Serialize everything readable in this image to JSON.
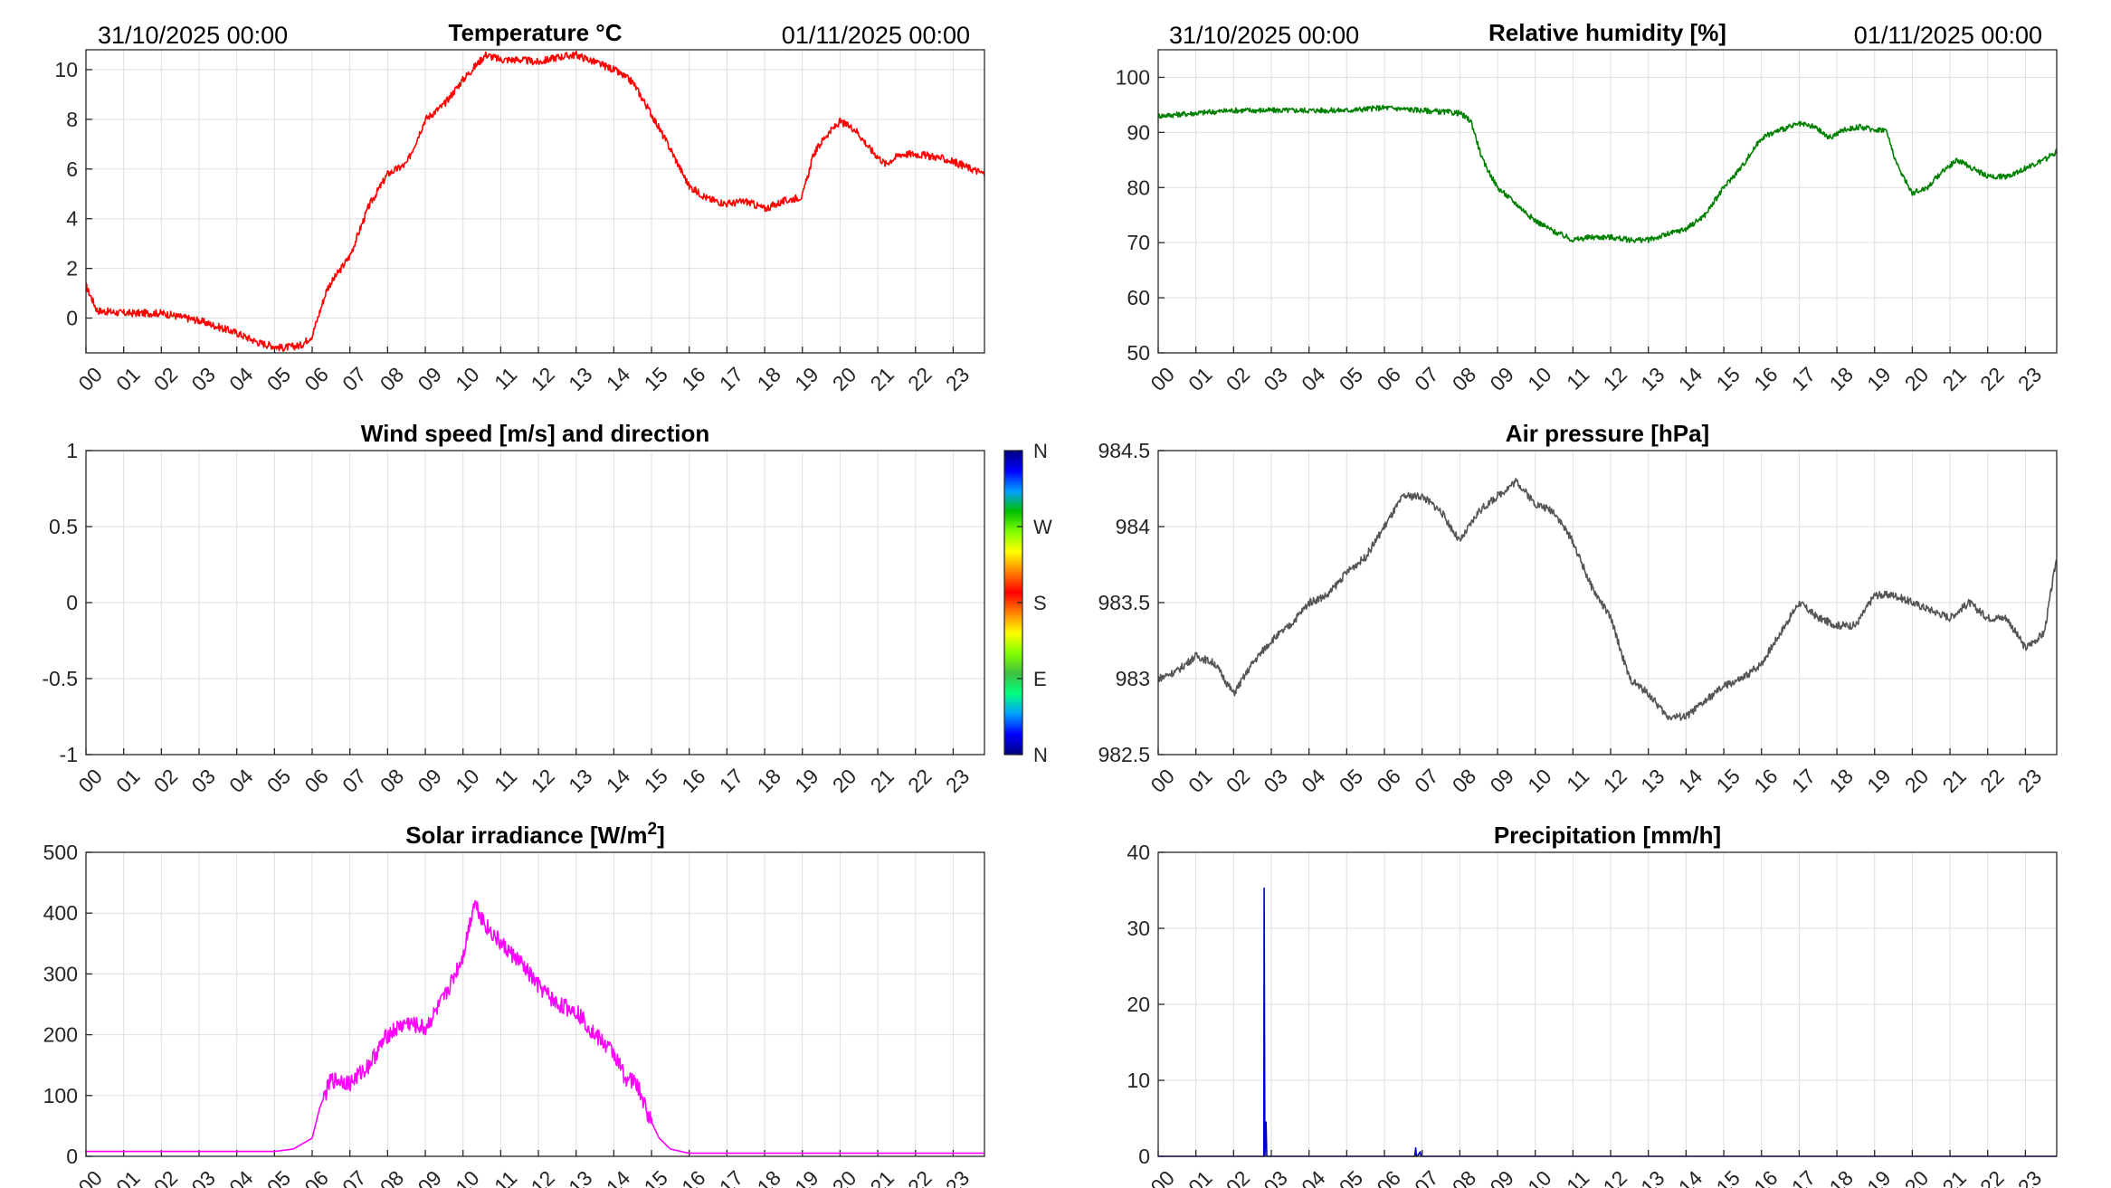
{
  "header": {
    "start_label": "31/10/2025 00:00",
    "end_label": "01/11/2025 00:00"
  },
  "hour_ticks": [
    "00",
    "01",
    "02",
    "03",
    "04",
    "05",
    "06",
    "07",
    "08",
    "09",
    "10",
    "11",
    "12",
    "13",
    "14",
    "15",
    "16",
    "17",
    "18",
    "19",
    "20",
    "21",
    "22",
    "23"
  ],
  "chart_data": [
    {
      "id": "temperature",
      "type": "line",
      "title": "Temperature °C",
      "title_sup": "",
      "color": "#ff0000",
      "x_unit": "hour of day",
      "xlim": [
        0,
        23.83
      ],
      "ylim": [
        -1.4,
        10.8
      ],
      "yticks": [
        0,
        2,
        4,
        6,
        8,
        10
      ],
      "ytick_labels": [
        "0",
        "2",
        "4",
        "6",
        "8",
        "10"
      ],
      "noise": 0.15,
      "series": [
        {
          "x": [
            0,
            0.3,
            1,
            2,
            3,
            4,
            4.6,
            5.2,
            5.7,
            6.0,
            6.4,
            7.0,
            7.5,
            8.0,
            8.5,
            9.0,
            9.5,
            10.0,
            10.6,
            11.0,
            11.5,
            12.0,
            12.5,
            13.0,
            13.5,
            14.0,
            14.5,
            15.0,
            15.5,
            16.0,
            16.5,
            17.0,
            17.5,
            18.0,
            18.5,
            19.0,
            19.3,
            19.6,
            20.0,
            20.4,
            20.8,
            21.2,
            21.6,
            22.0,
            22.5,
            23.0,
            23.5,
            23.83
          ],
          "y": [
            1.3,
            0.3,
            0.2,
            0.2,
            -0.1,
            -0.6,
            -1.0,
            -1.2,
            -1.1,
            -0.7,
            1.2,
            2.5,
            4.5,
            5.8,
            6.2,
            8.0,
            8.6,
            9.6,
            10.6,
            10.4,
            10.4,
            10.3,
            10.5,
            10.6,
            10.3,
            10.0,
            9.5,
            8.2,
            6.8,
            5.3,
            4.8,
            4.6,
            4.7,
            4.4,
            4.7,
            4.9,
            6.6,
            7.3,
            7.9,
            7.6,
            6.8,
            6.2,
            6.6,
            6.6,
            6.5,
            6.3,
            6.0,
            5.8
          ]
        }
      ]
    },
    {
      "id": "humidity",
      "type": "line",
      "title": "Relative humidity [%]",
      "title_sup": "",
      "color": "#008000",
      "x_unit": "hour of day",
      "xlim": [
        0,
        23.83
      ],
      "ylim": [
        50,
        105
      ],
      "yticks": [
        50,
        60,
        70,
        80,
        90,
        100
      ],
      "ytick_labels": [
        "50",
        "60",
        "70",
        "80",
        "90",
        "100"
      ],
      "noise": 0.5,
      "series": [
        {
          "x": [
            0,
            1,
            2,
            3,
            4,
            5,
            6,
            7,
            8.0,
            8.3,
            8.6,
            9.0,
            9.5,
            10.0,
            10.5,
            11.0,
            11.5,
            12.0,
            12.5,
            13.0,
            13.5,
            14.0,
            14.5,
            15.0,
            15.5,
            16.0,
            16.5,
            17.0,
            17.4,
            17.8,
            18.2,
            18.6,
            19.0,
            19.3,
            19.6,
            20.0,
            20.4,
            20.8,
            21.2,
            21.6,
            22.0,
            22.5,
            23.0,
            23.5,
            23.83
          ],
          "y": [
            93,
            93.5,
            94,
            94,
            94,
            94,
            94.5,
            94,
            93.5,
            92,
            85,
            80,
            77,
            74,
            72,
            70.5,
            71,
            71,
            70.5,
            70.5,
            71.5,
            72.5,
            75,
            80,
            84,
            89,
            90.5,
            91.5,
            91,
            89,
            90.5,
            91,
            90.5,
            90.5,
            84,
            79,
            80,
            83,
            85,
            83.5,
            82,
            82,
            83.5,
            85,
            86.5
          ]
        }
      ]
    },
    {
      "id": "wind",
      "type": "scatter",
      "title": "Wind speed [m/s] and direction",
      "title_sup": "",
      "color": "#000000",
      "x_unit": "hour of day",
      "xlim": [
        0,
        23.83
      ],
      "ylim": [
        -1,
        1
      ],
      "yticks": [
        -1,
        -0.5,
        0,
        0.5,
        1
      ],
      "ytick_labels": [
        "-1",
        "-0.5",
        "0",
        "0.5",
        "1"
      ],
      "noise": 0,
      "series": [
        {
          "x": [],
          "y": []
        }
      ],
      "colorbar": {
        "labels": [
          "N",
          "W",
          "S",
          "E",
          "N"
        ],
        "colors": [
          "#000080",
          "#0000ff",
          "#00a0ff",
          "#00ff80",
          "#40c040",
          "#80ff00",
          "#ffff00",
          "#ff8000",
          "#ff0000",
          "#ff8000",
          "#ffff00",
          "#80ff00",
          "#00c000",
          "#00a0ff",
          "#0000ff",
          "#000080"
        ]
      }
    },
    {
      "id": "pressure",
      "type": "line",
      "title": "Air pressure [hPa]",
      "title_sup": "",
      "color": "#555555",
      "x_unit": "hour of day",
      "xlim": [
        0,
        23.83
      ],
      "ylim": [
        982.5,
        984.5
      ],
      "yticks": [
        982.5,
        983,
        983.5,
        984,
        984.5
      ],
      "ytick_labels": [
        "982.5",
        "983",
        "983.5",
        "984",
        "984.5"
      ],
      "noise": 0.025,
      "series": [
        {
          "x": [
            0,
            0.5,
            1.0,
            1.5,
            2.0,
            2.5,
            3.0,
            3.5,
            4.0,
            4.5,
            5.0,
            5.5,
            6.0,
            6.5,
            7.0,
            7.5,
            8.0,
            8.5,
            9.0,
            9.5,
            10.0,
            10.5,
            11.0,
            11.5,
            12.0,
            12.5,
            13.0,
            13.5,
            14.0,
            14.5,
            15.0,
            15.5,
            16.0,
            16.5,
            17.0,
            17.5,
            18.0,
            18.5,
            19.0,
            19.5,
            20.0,
            20.5,
            21.0,
            21.5,
            22.0,
            22.5,
            23.0,
            23.5,
            23.83
          ],
          "y": [
            983.0,
            983.05,
            983.15,
            983.1,
            982.9,
            983.1,
            983.25,
            983.35,
            983.5,
            983.55,
            983.7,
            983.8,
            984.0,
            984.2,
            984.2,
            984.1,
            983.9,
            984.1,
            984.2,
            984.3,
            984.15,
            984.1,
            983.9,
            983.6,
            983.4,
            983.0,
            982.9,
            982.75,
            982.75,
            982.85,
            982.95,
            983.0,
            983.1,
            983.3,
            983.5,
            983.4,
            983.35,
            983.35,
            983.55,
            983.55,
            983.5,
            983.45,
            983.4,
            983.5,
            983.4,
            983.4,
            983.2,
            983.3,
            983.8
          ]
        }
      ]
    },
    {
      "id": "solar",
      "type": "line",
      "title": "Solar irradiance [W/m",
      "title_sup": "2",
      "title_tail": "]",
      "color": "#ff00ff",
      "x_unit": "hour of day",
      "xlim": [
        0,
        23.83
      ],
      "ylim": [
        0,
        500
      ],
      "yticks": [
        0,
        100,
        200,
        300,
        400,
        500
      ],
      "ytick_labels": [
        "0",
        "100",
        "200",
        "300",
        "400",
        "500"
      ],
      "noise": 14,
      "noise_range": [
        6.3,
        15.0
      ],
      "series": [
        {
          "x": [
            0,
            1,
            2,
            3,
            4,
            5.0,
            5.5,
            6.0,
            6.2,
            6.5,
            6.8,
            7.0,
            7.5,
            8.0,
            8.5,
            9.0,
            9.5,
            10.0,
            10.3,
            10.6,
            11.0,
            11.5,
            12.0,
            12.5,
            13.0,
            13.5,
            14.0,
            14.3,
            14.6,
            14.9,
            15.2,
            15.5,
            16.0,
            17,
            18,
            19,
            20,
            21,
            22,
            23,
            23.83
          ],
          "y": [
            8,
            8,
            8,
            8,
            8,
            8,
            12,
            30,
            80,
            125,
            125,
            120,
            150,
            200,
            220,
            210,
            260,
            330,
            420,
            380,
            350,
            320,
            280,
            250,
            240,
            200,
            170,
            130,
            120,
            70,
            30,
            12,
            5,
            5,
            5,
            5,
            5,
            5,
            5,
            5,
            5
          ]
        }
      ]
    },
    {
      "id": "precipitation",
      "type": "line",
      "title": "Precipitation [mm/h]",
      "title_sup": "",
      "color": "#0000cc",
      "x_unit": "hour of day",
      "xlim": [
        0,
        23.83
      ],
      "ylim": [
        0,
        40
      ],
      "yticks": [
        0,
        10,
        20,
        30,
        40
      ],
      "ytick_labels": [
        "0",
        "10",
        "20",
        "30",
        "40"
      ],
      "noise": 0,
      "series": [
        {
          "x": [
            0,
            2.78,
            2.8,
            2.81,
            2.83,
            2.86,
            2.88,
            2.9,
            2.92,
            6.8,
            6.83,
            6.85,
            6.87,
            6.95,
            6.97,
            7.0,
            23.83
          ],
          "y": [
            0,
            0,
            0,
            35.3,
            0,
            4.5,
            0,
            0,
            0,
            0,
            1.1,
            0,
            0,
            0.6,
            0,
            0,
            0
          ]
        }
      ]
    }
  ]
}
